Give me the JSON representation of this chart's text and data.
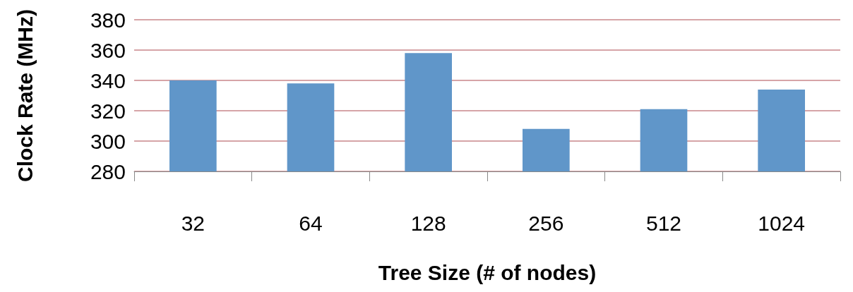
{
  "chart_data": {
    "type": "bar",
    "xlabel": "Tree Size (# of nodes)",
    "ylabel": "Clock Rate (MHz)",
    "categories": [
      "32",
      "64",
      "128",
      "256",
      "512",
      "1024"
    ],
    "values": [
      340,
      338,
      358,
      308,
      321,
      334
    ],
    "color": "#6096c9",
    "ylim": [
      280,
      380
    ],
    "yticks": [
      280,
      300,
      320,
      340,
      360,
      380
    ],
    "grid": "y"
  }
}
